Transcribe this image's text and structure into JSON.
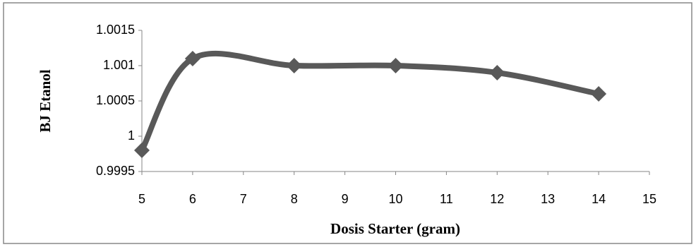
{
  "chart_data": {
    "type": "line",
    "xlabel": "Dosis Starter (gram)",
    "ylabel": "BJ Etanol",
    "x": [
      5,
      6,
      8,
      10,
      12,
      14
    ],
    "values": [
      0.9998,
      1.0011,
      1.001,
      1.001,
      1.0009,
      1.0006
    ],
    "color": "#595959",
    "smooth": true,
    "marker": "diamond",
    "xlim": [
      5,
      15
    ],
    "xticks": [
      5,
      6,
      7,
      8,
      9,
      10,
      11,
      12,
      13,
      14,
      15
    ],
    "ylim": [
      0.9995,
      1.0015
    ],
    "yticks": [
      0.9995,
      1,
      1.0005,
      1.001,
      1.0015
    ],
    "grid": false
  }
}
